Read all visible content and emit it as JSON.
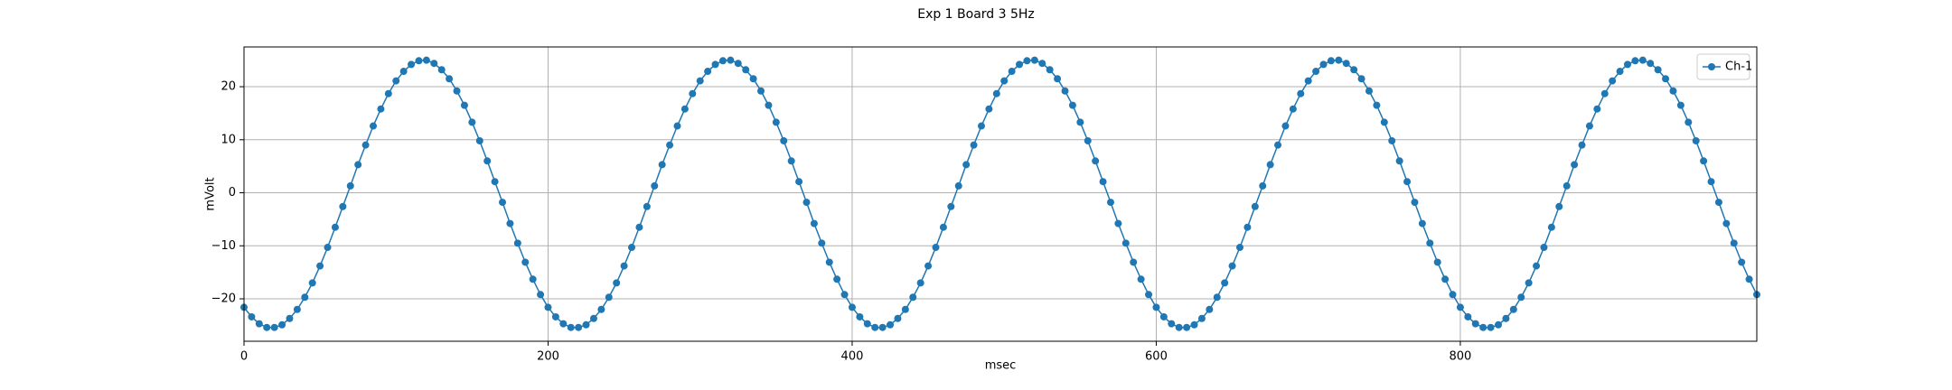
{
  "chart_data": {
    "type": "line",
    "title": "Exp 1 Board 3 5Hz",
    "xlabel": "msec",
    "ylabel": "mVolt",
    "x": [
      0,
      5,
      10,
      15,
      20,
      25,
      30,
      35,
      40,
      45,
      50,
      55,
      60,
      65,
      70,
      75,
      80,
      85,
      90,
      95,
      100,
      105,
      110,
      115,
      120,
      125,
      130,
      135,
      140,
      145,
      150,
      155,
      160,
      165,
      170,
      175,
      180,
      185,
      190,
      195,
      200,
      205,
      210,
      215,
      220,
      225,
      230,
      235,
      240,
      245,
      250,
      255,
      260,
      265,
      270,
      275,
      280,
      285,
      290,
      295,
      300,
      305,
      310,
      315,
      320,
      325,
      330,
      335,
      340,
      345,
      350,
      355,
      360,
      365,
      370,
      375,
      380,
      385,
      390,
      395,
      400,
      405,
      410,
      415,
      420,
      425,
      430,
      435,
      440,
      445,
      450,
      455,
      460,
      465,
      470,
      475,
      480,
      485,
      490,
      495,
      500,
      505,
      510,
      515,
      520,
      525,
      530,
      535,
      540,
      545,
      550,
      555,
      560,
      565,
      570,
      575,
      580,
      585,
      590,
      595,
      600,
      605,
      610,
      615,
      620,
      625,
      630,
      635,
      640,
      645,
      650,
      655,
      660,
      665,
      670,
      675,
      680,
      685,
      690,
      695,
      700,
      705,
      710,
      715,
      720,
      725,
      730,
      735,
      740,
      745,
      750,
      755,
      760,
      765,
      770,
      775,
      780,
      785,
      790,
      795,
      800,
      805,
      810,
      815,
      820,
      825,
      830,
      835,
      840,
      845,
      850,
      855,
      860,
      865,
      870,
      875,
      880,
      885,
      890,
      895,
      900,
      905,
      910,
      915,
      920,
      925,
      930,
      935,
      940,
      945,
      950,
      955,
      960,
      965,
      970,
      975,
      980,
      985,
      990,
      995
    ],
    "series": [
      {
        "name": "Ch-1",
        "color": "#1f77b4",
        "values": [
          -21.6,
          -23.4,
          -24.7,
          -25.4,
          -25.4,
          -24.9,
          -23.7,
          -22.0,
          -19.7,
          -17.0,
          -13.8,
          -10.3,
          -6.5,
          -2.6,
          1.3,
          5.3,
          9.0,
          12.6,
          15.8,
          18.7,
          21.1,
          22.9,
          24.2,
          24.9,
          25.0,
          24.4,
          23.2,
          21.5,
          19.2,
          16.5,
          13.3,
          9.8,
          6.0,
          2.1,
          -1.8,
          -5.8,
          -9.5,
          -13.1,
          -16.3,
          -19.2,
          -21.6,
          -23.4,
          -24.7,
          -25.4,
          -25.4,
          -24.9,
          -23.7,
          -22.0,
          -19.7,
          -17.0,
          -13.8,
          -10.3,
          -6.5,
          -2.6,
          1.3,
          5.3,
          9.0,
          12.6,
          15.8,
          18.7,
          21.1,
          22.9,
          24.2,
          24.9,
          25.0,
          24.4,
          23.2,
          21.5,
          19.2,
          16.5,
          13.3,
          9.8,
          6.0,
          2.1,
          -1.8,
          -5.8,
          -9.5,
          -13.1,
          -16.3,
          -19.2,
          -21.6,
          -23.4,
          -24.7,
          -25.4,
          -25.4,
          -24.9,
          -23.7,
          -22.0,
          -19.7,
          -17.0,
          -13.8,
          -10.3,
          -6.5,
          -2.6,
          1.3,
          5.3,
          9.0,
          12.6,
          15.8,
          18.7,
          21.1,
          22.9,
          24.2,
          24.9,
          25.0,
          24.4,
          23.2,
          21.5,
          19.2,
          16.5,
          13.3,
          9.8,
          6.0,
          2.1,
          -1.8,
          -5.8,
          -9.5,
          -13.1,
          -16.3,
          -19.2,
          -21.6,
          -23.4,
          -24.7,
          -25.4,
          -25.4,
          -24.9,
          -23.7,
          -22.0,
          -19.7,
          -17.0,
          -13.8,
          -10.3,
          -6.5,
          -2.6,
          1.3,
          5.3,
          9.0,
          12.6,
          15.8,
          18.7,
          21.1,
          22.9,
          24.2,
          24.9,
          25.0,
          24.4,
          23.2,
          21.5,
          19.2,
          16.5,
          13.3,
          9.8,
          6.0,
          2.1,
          -1.8,
          -5.8,
          -9.5,
          -13.1,
          -16.3,
          -19.2,
          -21.6,
          -23.4,
          -24.7,
          -25.4,
          -25.4,
          -24.9,
          -23.7,
          -22.0,
          -19.7,
          -17.0,
          -13.8,
          -10.3,
          -6.5,
          -2.6,
          1.3,
          5.3,
          9.0,
          12.6,
          15.8,
          18.7,
          21.1,
          22.9,
          24.2,
          24.9,
          25.0,
          24.4,
          23.2,
          21.5,
          19.2,
          16.5,
          13.3,
          9.8,
          6.0,
          2.1,
          -1.8,
          -5.8,
          -9.5,
          -13.1,
          -16.3,
          -19.2
        ]
      }
    ],
    "xlim": [
      0,
      995
    ],
    "ylim": [
      -28,
      27.5
    ],
    "xticks": [
      0,
      200,
      400,
      600,
      800
    ],
    "yticks": [
      {
        "value": -20,
        "label": "−20"
      },
      {
        "value": -10,
        "label": "−10"
      },
      0,
      10,
      20
    ],
    "grid": true,
    "legend": "upper right"
  }
}
